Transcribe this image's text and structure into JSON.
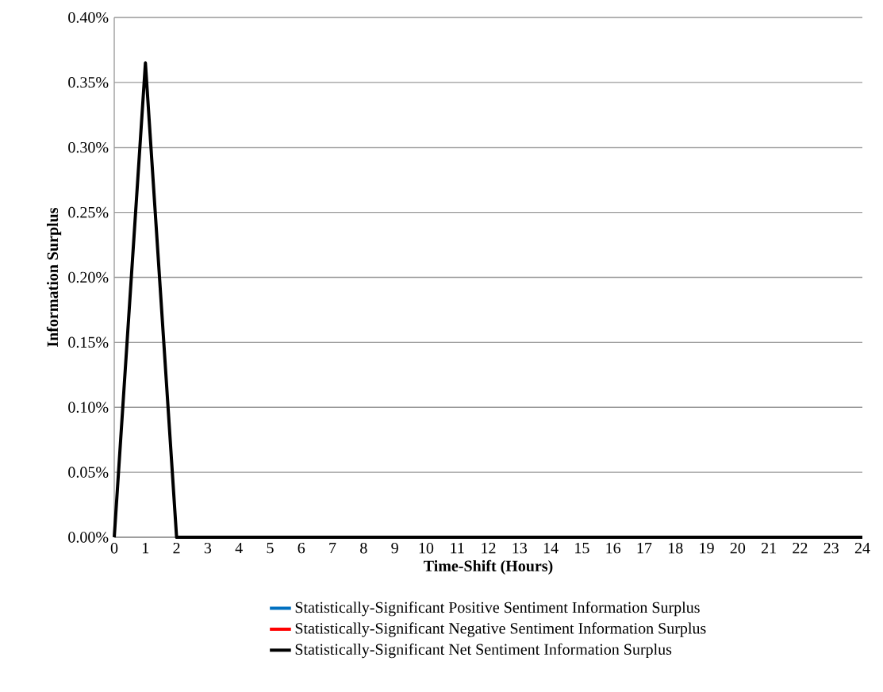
{
  "chart_data": {
    "type": "line",
    "xlabel": "Time-Shift  (Hours)",
    "ylabel": "Information  Surplus",
    "x": [
      0,
      1,
      2,
      3,
      4,
      5,
      6,
      7,
      8,
      9,
      10,
      11,
      12,
      13,
      14,
      15,
      16,
      17,
      18,
      19,
      20,
      21,
      22,
      23,
      24
    ],
    "series": [
      {
        "name": "Statistically-Significant Positive Sentiment Information Surplus",
        "color": "#0070c0",
        "values": [
          null,
          null,
          null,
          null,
          null,
          null,
          null,
          null,
          null,
          null,
          null,
          null,
          null,
          null,
          null,
          null,
          null,
          null,
          null,
          null,
          null,
          null,
          null,
          null,
          null
        ]
      },
      {
        "name": "Statistically-Significant Negative Sentiment Information Surplus",
        "color": "#ff0000",
        "values": [
          null,
          null,
          null,
          null,
          null,
          null,
          null,
          null,
          null,
          null,
          null,
          null,
          null,
          null,
          null,
          null,
          null,
          null,
          null,
          null,
          null,
          null,
          null,
          null,
          null
        ]
      },
      {
        "name": "Statistically-Significant Net Sentiment Information Surplus",
        "color": "#000000",
        "values": [
          0,
          0.365,
          0,
          0,
          0,
          0,
          0,
          0,
          0,
          0,
          0,
          0,
          0,
          0,
          0,
          0,
          0,
          0,
          0,
          0,
          0,
          0,
          0,
          0,
          0
        ]
      }
    ],
    "xlim": [
      0,
      24
    ],
    "xticks": [
      0,
      1,
      2,
      3,
      4,
      5,
      6,
      7,
      8,
      9,
      10,
      11,
      12,
      13,
      14,
      15,
      16,
      17,
      18,
      19,
      20,
      21,
      22,
      23,
      24
    ],
    "ylim": [
      0,
      0.4
    ],
    "yticks": [
      {
        "value": 0,
        "label": "0.00%"
      },
      {
        "value": 0.05,
        "label": "0.05%"
      },
      {
        "value": 0.1,
        "label": "0.10%"
      },
      {
        "value": 0.15,
        "label": "0.15%"
      },
      {
        "value": 0.2,
        "label": "0.20%"
      },
      {
        "value": 0.25,
        "label": "0.25%"
      },
      {
        "value": 0.3,
        "label": "0.30%"
      },
      {
        "value": 0.35,
        "label": "0.35%"
      },
      {
        "value": 0.4,
        "label": "0.40%"
      }
    ],
    "grid": "y",
    "legend": "bottom",
    "marker": "none",
    "line_style": "solid"
  }
}
